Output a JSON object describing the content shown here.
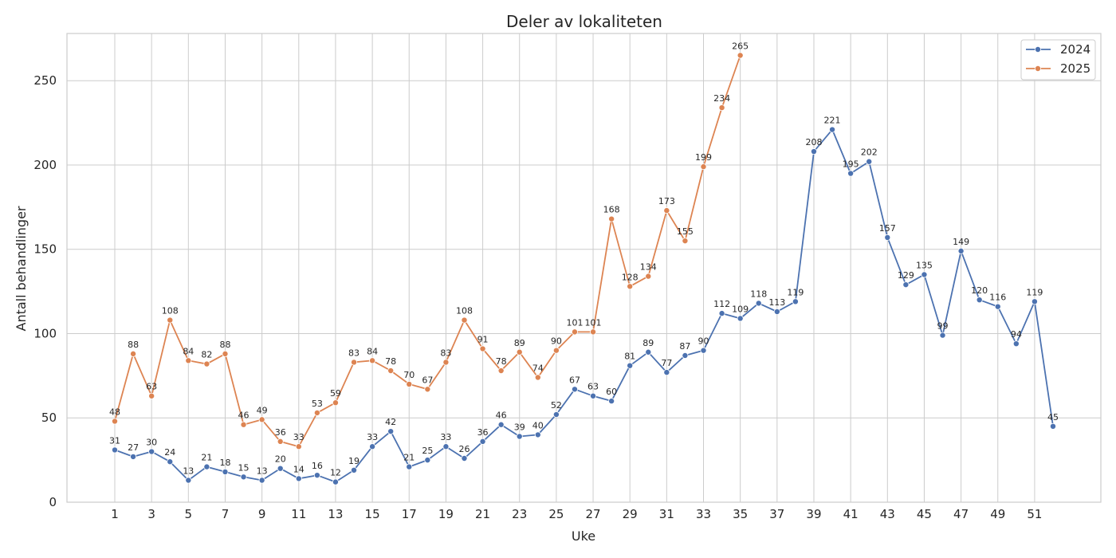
{
  "chart_data": {
    "type": "line",
    "title": "Deler av lokaliteten",
    "xlabel": "Uke",
    "ylabel": "Antall behandlinger",
    "xlim": [
      -1.6,
      54.6
    ],
    "ylim": [
      0,
      278
    ],
    "x_ticks": [
      1,
      3,
      5,
      7,
      9,
      11,
      13,
      15,
      17,
      19,
      21,
      23,
      25,
      27,
      29,
      31,
      33,
      35,
      37,
      39,
      41,
      43,
      45,
      47,
      49,
      51
    ],
    "y_ticks": [
      0,
      50,
      100,
      150,
      200,
      250
    ],
    "grid": true,
    "legend_position": "top-right",
    "series": [
      {
        "name": "2024",
        "color": "#4c72b0",
        "x": [
          1,
          2,
          3,
          4,
          5,
          6,
          7,
          8,
          9,
          10,
          11,
          12,
          13,
          14,
          15,
          16,
          17,
          18,
          19,
          20,
          21,
          22,
          23,
          24,
          25,
          26,
          27,
          28,
          29,
          30,
          31,
          32,
          33,
          34,
          35,
          36,
          37,
          38,
          39,
          40,
          41,
          42,
          43,
          44,
          45,
          46,
          47,
          48,
          49,
          50,
          51,
          52
        ],
        "values": [
          31,
          27,
          30,
          24,
          13,
          21,
          18,
          15,
          13,
          20,
          14,
          16,
          12,
          19,
          33,
          42,
          21,
          25,
          33,
          26,
          36,
          46,
          39,
          40,
          52,
          67,
          63,
          60,
          81,
          89,
          77,
          87,
          90,
          112,
          109,
          118,
          113,
          119,
          208,
          221,
          195,
          202,
          157,
          129,
          135,
          99,
          149,
          120,
          116,
          94,
          119,
          45
        ]
      },
      {
        "name": "2025",
        "color": "#dd8452",
        "x": [
          1,
          2,
          3,
          4,
          5,
          6,
          7,
          8,
          9,
          10,
          11,
          12,
          13,
          14,
          15,
          16,
          17,
          18,
          19,
          20,
          21,
          22,
          23,
          24,
          25,
          26,
          27,
          28,
          29,
          30,
          31,
          32,
          33,
          34,
          35
        ],
        "values": [
          48,
          88,
          63,
          108,
          84,
          82,
          88,
          46,
          49,
          36,
          33,
          53,
          59,
          83,
          84,
          78,
          70,
          67,
          83,
          108,
          91,
          78,
          89,
          74,
          90,
          101,
          101,
          168,
          128,
          134,
          173,
          155,
          199,
          234,
          265
        ]
      }
    ]
  }
}
